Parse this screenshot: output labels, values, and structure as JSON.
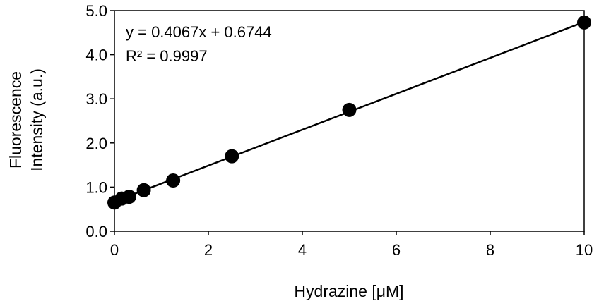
{
  "chart_data": {
    "type": "scatter",
    "title": "",
    "xlabel": "Hydrazine [μM]",
    "ylabel_lines": [
      "Fluorescence",
      "Intensity (a.u.)"
    ],
    "xlim": [
      0,
      10
    ],
    "ylim": [
      0.0,
      5.0
    ],
    "x_ticks": [
      0,
      2,
      4,
      6,
      8,
      10
    ],
    "x_tick_labels": [
      "0",
      "2",
      "4",
      "6",
      "8",
      "10"
    ],
    "y_ticks": [
      0.0,
      1.0,
      2.0,
      3.0,
      4.0,
      5.0
    ],
    "y_tick_labels": [
      "0.0",
      "1.0",
      "2.0",
      "3.0",
      "4.0",
      "5.0"
    ],
    "grid": false,
    "legend": "none",
    "series": [
      {
        "x": [
          0,
          0.156,
          0.3125,
          0.625,
          1.25,
          2.5,
          5,
          10
        ],
        "y": [
          0.65,
          0.74,
          0.78,
          0.93,
          1.15,
          1.7,
          2.75,
          4.73
        ]
      }
    ],
    "trendline": {
      "slope": 0.4067,
      "intercept": 0.6744
    },
    "annotations": [
      "y = 0.4067x + 0.6744",
      "R² = 0.9997"
    ],
    "colors": {
      "marker": "#000000",
      "line": "#000000",
      "frame": "#000000"
    }
  }
}
